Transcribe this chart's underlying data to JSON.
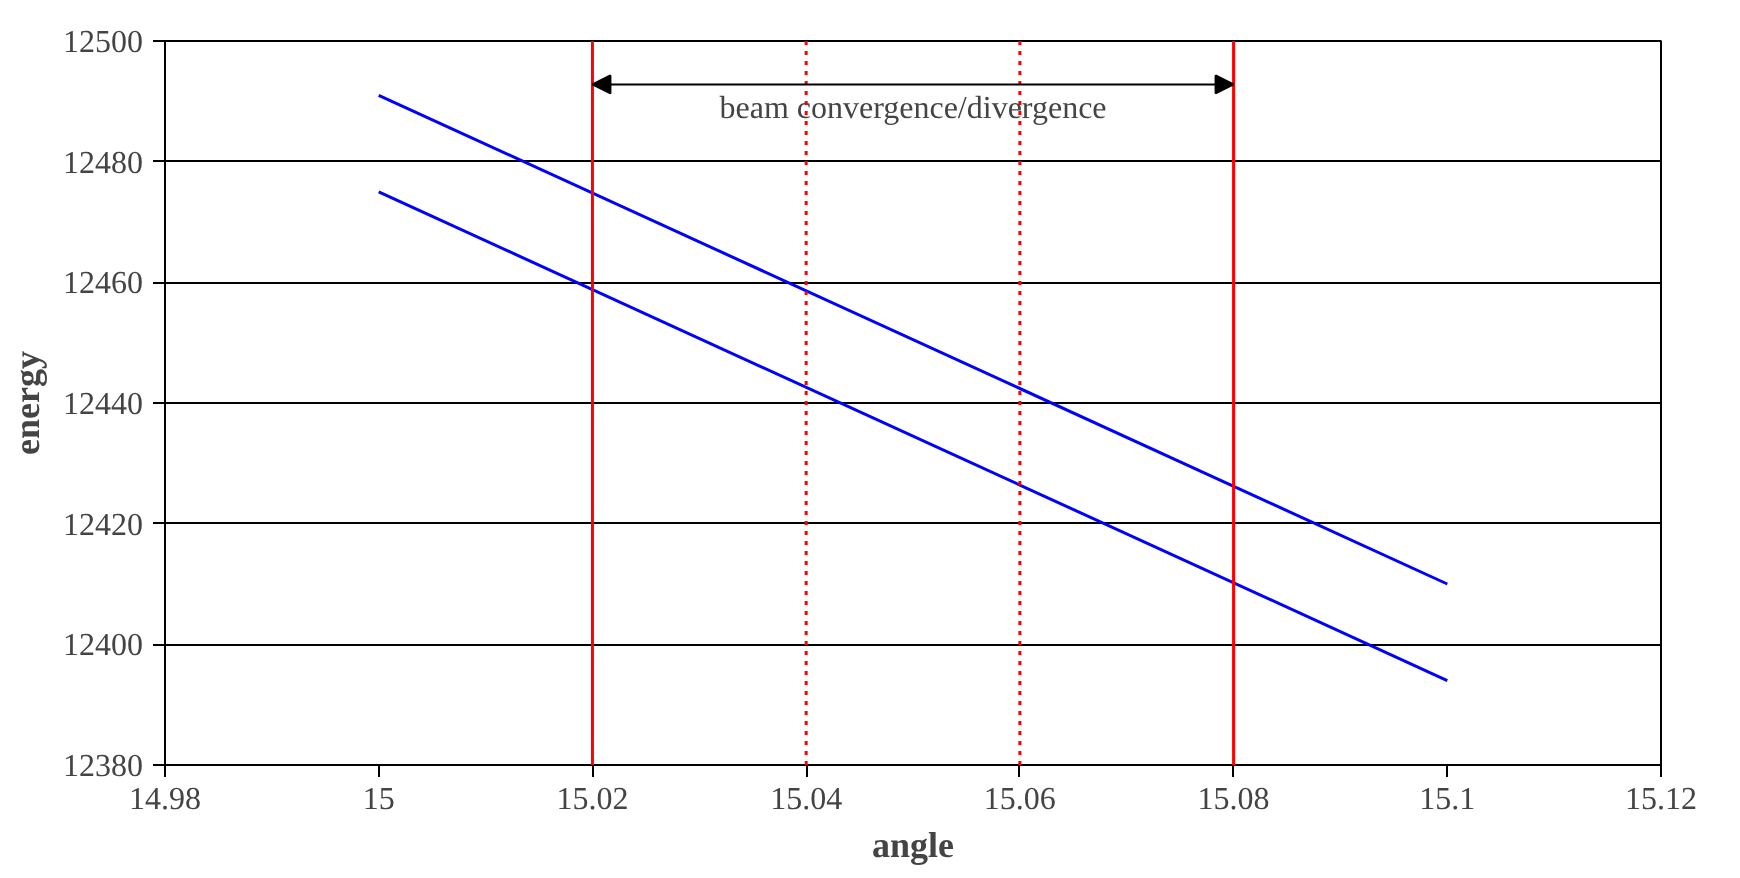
{
  "chart_data": {
    "type": "line",
    "xlabel": "angle",
    "ylabel": "energy",
    "series": [
      {
        "color": "#0000ff",
        "values": [
          12491,
          12410
        ]
      },
      {
        "color": "#0000ff",
        "values": [
          12475,
          12394
        ]
      }
    ],
    "x": [
      15,
      15.1
    ],
    "xlim": [
      14.98,
      15.12
    ],
    "xticks": [
      14.98,
      15,
      15.02,
      15.04,
      15.06,
      15.08,
      15.1,
      15.12
    ],
    "ylim": [
      12380,
      12500
    ],
    "yticks": [
      12380,
      12400,
      12420,
      12440,
      12460,
      12480,
      12500
    ],
    "grid": "y",
    "marker": "none",
    "ref_lines": [
      {
        "axis": "x",
        "value": 15.02,
        "color": "#ff0000",
        "line_style": "solid"
      },
      {
        "axis": "x",
        "value": 15.04,
        "color": "#ff0000",
        "line_style": "dotted"
      },
      {
        "axis": "x",
        "value": 15.06,
        "color": "#ff0000",
        "line_style": "dotted"
      },
      {
        "axis": "x",
        "value": 15.08,
        "color": "#ff0000",
        "line_style": "solid"
      }
    ],
    "annotations": [
      "beam convergence/divergence"
    ]
  }
}
